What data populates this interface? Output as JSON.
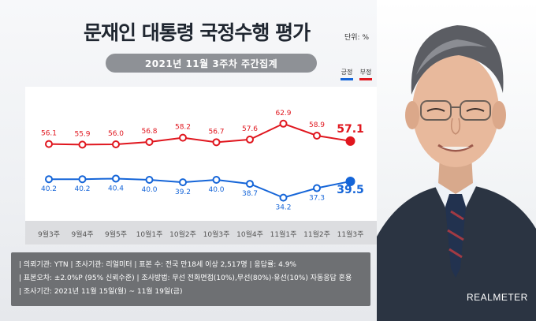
{
  "title": "문재인 대통령 국정수행 평가",
  "unit": "단위: %",
  "period": "2021년 11월 3주차 주간집계",
  "legend": {
    "positive": "긍정",
    "negative": "부정"
  },
  "colors": {
    "positive": "#1565d8",
    "negative": "#e0161e",
    "notes_bg": "#6e7073"
  },
  "chart_data": {
    "type": "line",
    "categories": [
      "9월3주",
      "9월4주",
      "9월5주",
      "10월1주",
      "10월2주",
      "10월3주",
      "10월4주",
      "11월1주",
      "11월2주",
      "11월3주"
    ],
    "series": [
      {
        "name": "부정",
        "values": [
          56.1,
          55.9,
          56.0,
          56.8,
          58.2,
          56.7,
          57.6,
          62.9,
          58.9,
          57.1
        ]
      },
      {
        "name": "긍정",
        "values": [
          40.2,
          40.2,
          40.4,
          40.0,
          39.2,
          40.0,
          38.7,
          34.2,
          37.3,
          39.5
        ]
      }
    ],
    "value_labels": {
      "부정": [
        "56.1",
        "55.9",
        "56.0",
        "56.8",
        "58.2",
        "56.7",
        "57.6",
        "62.9",
        "58.9",
        "57.1"
      ],
      "긍정": [
        "40.2",
        "40.2",
        "40.4",
        "40.0",
        "39.2",
        "40.0",
        "38.7",
        "34.2",
        "37.3",
        "39.5"
      ]
    },
    "legend_position": "top-right",
    "grid": false
  },
  "notes": [
    "| 의뢰기관: YTN  | 조사기관: 리얼미터  | 표본 수: 전국 만18세 이상 2,517명  | 응답률: 4.9%",
    "| 표본오차: ±2.0%P (95% 신뢰수준)  | 조사방법: 무선 전화면접(10%),무선(80%)·유선(10%) 자동응답 혼용",
    "| 조사기간: 2021년 11월 15일(월) ~ 11월 19일(금)"
  ],
  "brand": "REALMETER"
}
